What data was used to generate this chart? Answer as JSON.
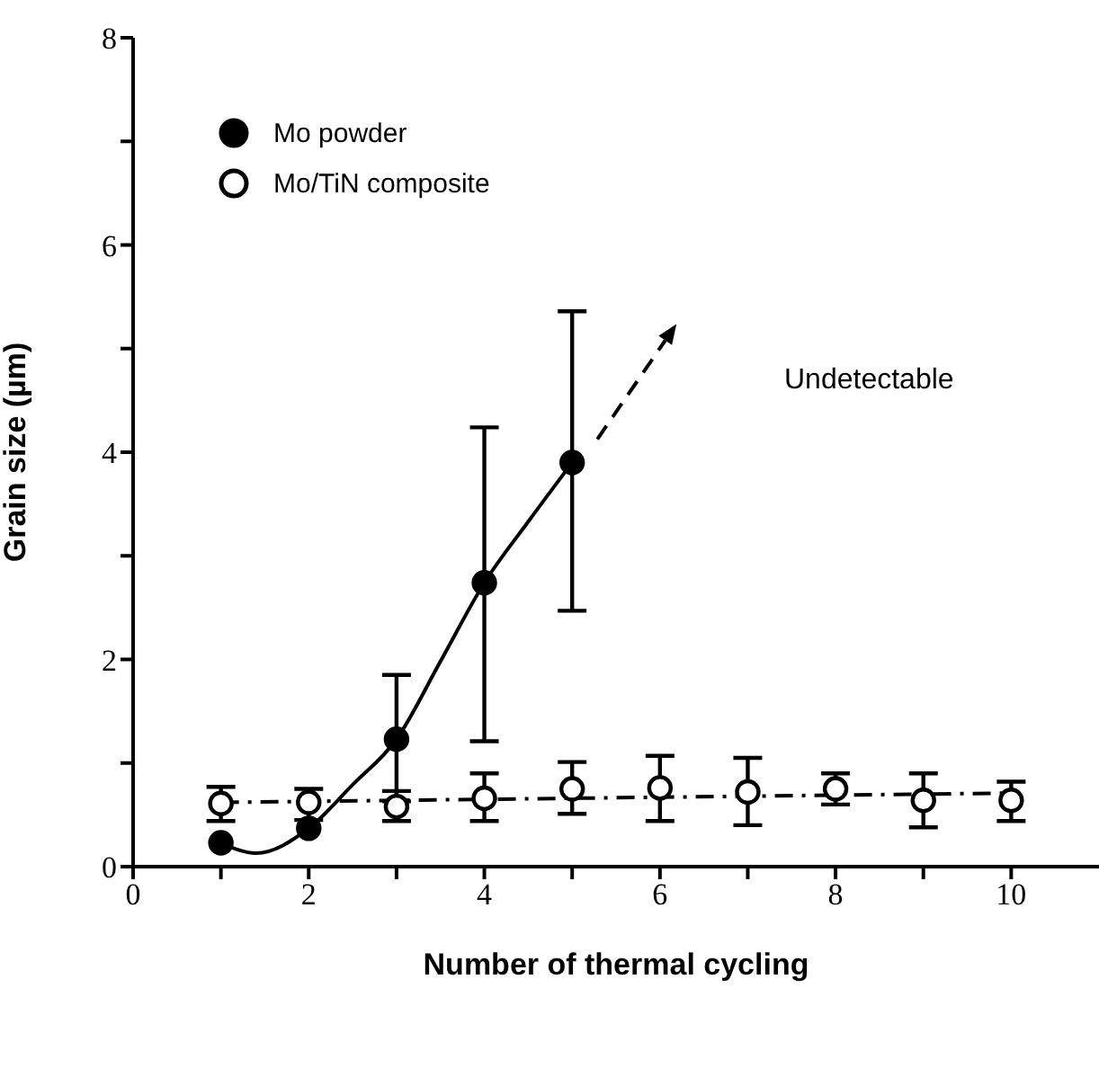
{
  "chart_data": {
    "type": "scatter",
    "xlabel": "Number of thermal cycling",
    "ylabel": "Grain size (µm)",
    "xlim": [
      0,
      11
    ],
    "ylim": [
      0,
      8
    ],
    "xticks": [
      0,
      {
        "value": 1,
        "label": null
      },
      2,
      {
        "value": 3,
        "label": null
      },
      4,
      {
        "value": 5,
        "label": null
      },
      6,
      {
        "value": 7,
        "label": null
      },
      8,
      {
        "value": 9,
        "label": null
      },
      10
    ],
    "yticks": [
      0,
      {
        "value": 1,
        "label": null
      },
      2,
      {
        "value": 3,
        "label": null
      },
      4,
      {
        "value": 5,
        "label": null
      },
      6,
      {
        "value": 7,
        "label": null
      },
      8
    ],
    "legend": "top left",
    "grid": false,
    "annotations": [
      "Undetectable"
    ],
    "series": [
      {
        "name": "Mo powder",
        "type": "scatter",
        "color": "#000000",
        "marker": "circle",
        "x": [
          1,
          2,
          3,
          4,
          5
        ],
        "values": [
          0.23,
          0.37,
          1.23,
          2.74,
          3.9
        ],
        "errors": [
          null,
          null,
          [
            0.63,
            1.85
          ],
          [
            1.21,
            4.24
          ],
          [
            2.47,
            5.36
          ]
        ]
      },
      {
        "name": "Mo/TiN composite",
        "type": "scatter",
        "color": "#000000",
        "marker": "circle",
        "x": [
          1,
          2,
          3,
          4,
          5,
          6,
          7,
          8,
          9,
          10
        ],
        "values": [
          0.61,
          0.62,
          0.58,
          0.66,
          0.75,
          0.76,
          0.72,
          0.75,
          0.64,
          0.64
        ],
        "errors": [
          [
            0.44,
            0.77
          ],
          [
            0.45,
            0.75
          ],
          [
            0.44,
            0.73
          ],
          [
            0.44,
            0.9
          ],
          [
            0.51,
            1.01
          ],
          [
            0.44,
            1.07
          ],
          [
            0.4,
            1.05
          ],
          [
            0.6,
            0.9
          ],
          [
            0.38,
            0.9
          ],
          [
            0.44,
            0.82
          ]
        ]
      },
      {
        "type": "line",
        "color": "#000000",
        "line_style": "solid",
        "marker": "none",
        "x": [
          1,
          1.4,
          2,
          2.5,
          3,
          3.5,
          4,
          4.5,
          5
        ],
        "values": [
          0.23,
          0.13,
          0.37,
          0.79,
          1.23,
          1.98,
          2.74,
          3.33,
          3.9
        ]
      },
      {
        "type": "line",
        "color": "#000000",
        "line_style": "dashdot",
        "marker": "none",
        "x": [
          1,
          10
        ],
        "values": [
          0.62,
          0.71
        ]
      }
    ]
  }
}
